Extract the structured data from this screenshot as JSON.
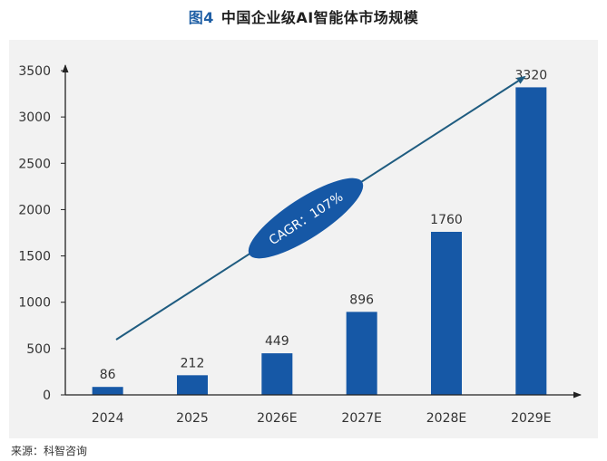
{
  "title": {
    "figure_label": "图4",
    "text": "中国企业级AI智能体市场规模"
  },
  "source": "来源：科智咨询",
  "colors": {
    "bar": "#1658a6",
    "arrow": "#1f5c80",
    "ellipse": "#1658a6",
    "background": "#f2f2f2"
  },
  "annotation": {
    "text": "CAGR：107%"
  },
  "chart_data": {
    "type": "bar",
    "categories": [
      "2024",
      "2025",
      "2026E",
      "2027E",
      "2028E",
      "2029E"
    ],
    "values": [
      86,
      212,
      449,
      896,
      1760,
      3320
    ],
    "value_labels": [
      "86",
      "212",
      "449",
      "896",
      "1760",
      "3320"
    ],
    "ylim": [
      0,
      3500
    ],
    "yticks": [
      "0",
      "500",
      "1000",
      "1500",
      "2000",
      "2500",
      "3000",
      "3500"
    ],
    "xlabel": "",
    "ylabel": "",
    "grid": false,
    "legend": "none"
  }
}
